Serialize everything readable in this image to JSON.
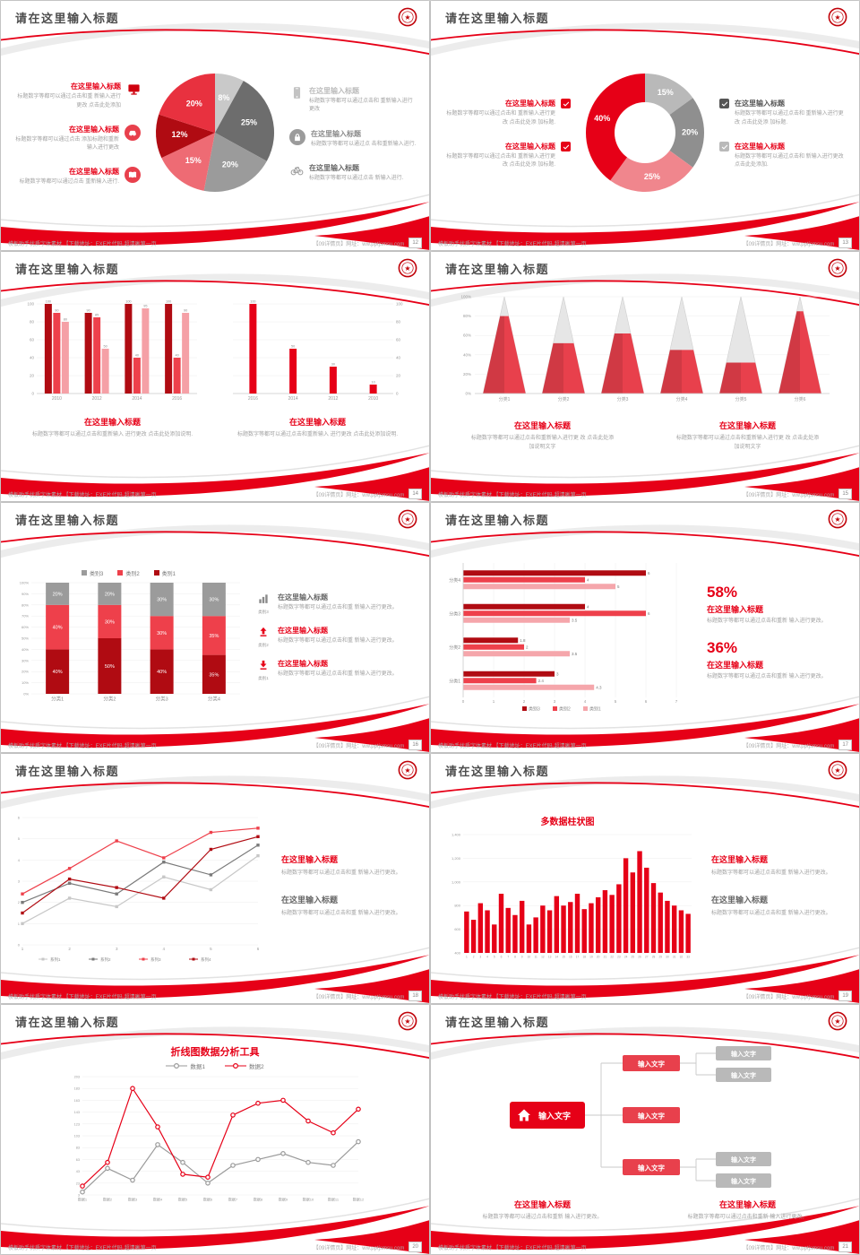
{
  "footer": {
    "left": "模板助手优质字体素材 【下载地址：EXE片代码·超清晰第一页",
    "right": "【09详情页】网址：ww.pptjsmsu.com"
  },
  "logo": {
    "glyph": "★"
  },
  "slides": [
    {
      "type": "pie_features",
      "title": "请在这里输入标题",
      "page_no": "12",
      "left_items": [
        {
          "icon": "monitor",
          "style": "plain",
          "color": "#cf000e",
          "title": "在这里输入标题",
          "title_color": "#e60017",
          "desc": "标题数字等都可以通过点击和重 新输入进行更改 点击此处添加"
        },
        {
          "icon": "car",
          "style": "circle",
          "color": "#e8404c",
          "title": "在这里输入标题",
          "title_color": "#e60017",
          "desc": "标题数字等都可以通过点击 添加标题和重新输入进行更改"
        },
        {
          "icon": "book",
          "style": "circle",
          "color": "#e8404c",
          "title": "在这里输入标题",
          "title_color": "#e60017",
          "desc": "标题数字等都可以通过点击 重新输入进行."
        }
      ],
      "right_items": [
        {
          "icon": "phone",
          "style": "plain",
          "color": "#c3c3c3",
          "title": "在这里输入标题",
          "title_color": "#bcbcbc",
          "desc": "标题数字等都可以通过点击和 重新输入进行更改"
        },
        {
          "icon": "lock",
          "style": "circle",
          "color": "#9b9b9b",
          "title": "在这里输入标题",
          "title_color": "#8a8a8a",
          "desc": "标题数字等都可以通过点 击和重新输入进行."
        },
        {
          "icon": "bike",
          "style": "plain",
          "color": "#9b9b9b",
          "title": "在这里输入标题",
          "title_color": "#666666",
          "desc": "标题数字等都可以通过点击 新输入进行."
        }
      ],
      "chart": {
        "type": "pie",
        "slices": [
          {
            "label": "8%",
            "value": 8,
            "color": "#c9c9c9"
          },
          {
            "label": "25%",
            "value": 25,
            "color": "#6d6d6d"
          },
          {
            "label": "20%",
            "value": 20,
            "color": "#9b9b9b"
          },
          {
            "label": "15%",
            "value": 15,
            "color": "#ee6b74"
          },
          {
            "label": "12%",
            "value": 12,
            "color": "#b00b12"
          },
          {
            "label": "20%",
            "value": 20,
            "color": "#e8313f"
          }
        ]
      }
    },
    {
      "type": "donut_checks",
      "title": "请在这里输入标题",
      "page_no": "13",
      "left_items": [
        {
          "box_color": "#e60017",
          "title": "在这里输入标题",
          "title_color": "#e60017",
          "desc": "标题数字等都可以通过点击和 重新输入进行更改 点击此处添 加标题."
        },
        {
          "box_color": "#e60017",
          "title": "在这里输入标题",
          "title_color": "#e60017",
          "desc": "标题数字等都可以通过点击和 重新输入进行更改 点击此处添 加标题."
        }
      ],
      "right_items": [
        {
          "box_color": "#555555",
          "title": "在这里输入标题",
          "title_color": "#555555",
          "desc": "标题数字等都可以通过点击和 重新输入进行更改 点击此处添 加标题."
        },
        {
          "box_color": "#b9b9b9",
          "title": "在这里输入标题",
          "title_color": "#e60017",
          "desc": "标题数字等都可以通过点击和 新输入进行更改 点击此处添加."
        }
      ],
      "chart": {
        "type": "donut",
        "slices": [
          {
            "label": "15%",
            "value": 15,
            "color": "#b9b9b9"
          },
          {
            "label": "20%",
            "value": 20,
            "color": "#8f8f8f"
          },
          {
            "label": "25%",
            "value": 25,
            "color": "#f0868d"
          },
          {
            "label": "40%",
            "value": 40,
            "color": "#e60017"
          }
        ]
      }
    },
    {
      "type": "dual_bars",
      "title": "请在这里输入标题",
      "page_no": "14",
      "panels": [
        {
          "heading": "在这里输入标题",
          "desc": "标题数字等都可以通过点击和重新输入 进行更改 点击此处添加说明.",
          "chart": {
            "categories": [
              "2010",
              "2012",
              "2014",
              "2016"
            ],
            "series": [
              {
                "color": "#b00b12",
                "values": [
                  100,
                  90,
                  100,
                  100
                ]
              },
              {
                "color": "#ee404b",
                "values": [
                  90,
                  85,
                  40,
                  40
                ]
              },
              {
                "color": "#f5a0a6",
                "values": [
                  80,
                  50,
                  95,
                  90
                ]
              }
            ],
            "yticks": [
              0,
              20,
              40,
              60,
              80,
              100
            ],
            "axis": "left"
          }
        },
        {
          "heading": "在这里输入标题",
          "desc": "标题数字等都可以通过点击和重新输入 进行更改 点击此处添加说明.",
          "chart": {
            "categories": [
              "2016",
              "2014",
              "2012",
              "2010"
            ],
            "series": [
              {
                "color": "#e60017",
                "values": [
                  100,
                  50,
                  30,
                  10
                ]
              }
            ],
            "yticks": [
              0,
              20,
              40,
              60,
              80,
              100
            ],
            "axis": "right"
          }
        }
      ]
    },
    {
      "type": "cones",
      "title": "请在这里输入标题",
      "page_no": "15",
      "chart": {
        "categories": [
          "分类1",
          "分类2",
          "分类3",
          "分类4",
          "分类5",
          "分类6"
        ],
        "values": [
          80,
          52,
          62,
          45,
          32,
          85
        ],
        "yticks": [
          "100%",
          "80%",
          "60%",
          "40%",
          "20%",
          "0%"
        ]
      },
      "texts": [
        {
          "heading": "在这里输入标题",
          "desc": "标题数字等都可以通过点击和重新输入进行更 改 点击此处添加说明文字"
        },
        {
          "heading": "在这里输入标题",
          "desc": "标题数字等都可以通过点击和重新输入进行更 改 点击此处添加说明文字"
        }
      ]
    },
    {
      "type": "stacked_legend",
      "title": "请在这里输入标题",
      "page_no": "16",
      "chart": {
        "categories": [
          "分类1",
          "分类2",
          "分类3",
          "分类4"
        ],
        "ymax": 100,
        "ystep": 10,
        "series": [
          {
            "name": "类别1",
            "color": "#b00b12",
            "values": [
              40,
              50,
              40,
              35
            ]
          },
          {
            "name": "类别2",
            "color": "#ee404b",
            "values": [
              40,
              30,
              30,
              35
            ]
          },
          {
            "name": "类别3",
            "color": "#9b9b9b",
            "values": [
              20,
              20,
              30,
              30
            ]
          }
        ],
        "legend_order": [
          "类别3",
          "类别2",
          "类别1"
        ],
        "legend_colors": [
          "#9b9b9b",
          "#ee404b",
          "#b00b12"
        ]
      },
      "items": [
        {
          "icon": "chart",
          "icon_color": "#8a8a8a",
          "caption": "类别3",
          "title": "在这里输入标题",
          "title_color": "#666666",
          "desc": "标题数字等都可以通过点击和重 新输入进行更改。"
        },
        {
          "icon": "up",
          "icon_color": "#e60017",
          "caption": "类别2",
          "title": "在这里输入标题",
          "title_color": "#e60017",
          "desc": "标题数字等都可以通过点击和重 新输入进行更改。"
        },
        {
          "icon": "down",
          "icon_color": "#e60017",
          "caption": "类别1",
          "title": "在这里输入标题",
          "title_color": "#e60017",
          "desc": "标题数字等都可以通过点击和重 新输入进行更改。"
        }
      ]
    },
    {
      "type": "hbar_stats",
      "title": "请在这里输入标题",
      "page_no": "17",
      "chart": {
        "categories": [
          "分类4",
          "分类3",
          "分类2",
          "分类1"
        ],
        "series": [
          {
            "name": "类别3",
            "color": "#b00b12"
          },
          {
            "name": "类别2",
            "color": "#ee404b"
          },
          {
            "name": "类别1",
            "color": "#f5a6ab"
          }
        ],
        "rows": [
          [
            6,
            4,
            5
          ],
          [
            4,
            6,
            3.5
          ],
          [
            1.8,
            2,
            3.5
          ],
          [
            3,
            2.4,
            4.3
          ]
        ],
        "xticks": [
          0,
          1,
          2,
          3,
          4,
          5,
          6,
          7
        ]
      },
      "stats": [
        {
          "value": "58%",
          "heading": "在这里输入标题",
          "desc": "标题数字等都可以通过点击和重新 输入进行更改。"
        },
        {
          "value": "36%",
          "heading": "在这里输入标题",
          "desc": "标题数字等都可以通过点击和重新 输入进行更改。"
        }
      ]
    },
    {
      "type": "lines_text",
      "title": "请在这里输入标题",
      "page_no": "18",
      "chart": {
        "x": [
          "1",
          "2",
          "3",
          "4",
          "5",
          "6"
        ],
        "ymax": 6,
        "ystep": 1,
        "series": [
          {
            "name": "系列1",
            "color": "#c7c7c7",
            "values": [
              1,
              2.2,
              1.8,
              3.2,
              2.6,
              4.2
            ]
          },
          {
            "name": "系列2",
            "color": "#7a7a7a",
            "values": [
              2,
              2.9,
              2.4,
              3.9,
              3.3,
              4.7
            ]
          },
          {
            "name": "系列3",
            "color": "#ee404b",
            "values": [
              2.4,
              3.6,
              4.9,
              4.1,
              5.3,
              5.5
            ]
          },
          {
            "name": "系列4",
            "color": "#b00b12",
            "values": [
              1.5,
              3.1,
              2.7,
              2.2,
              4.5,
              5.1
            ]
          }
        ]
      },
      "texts": [
        {
          "heading": "在这里输入标题",
          "heading_color": "#e60017",
          "desc": "标题数字等都可以通过点击和重 新输入进行更改。"
        },
        {
          "heading": "在这里输入标题",
          "heading_color": "#666666",
          "desc": "标题数字等都可以通过点击和重 新输入进行更改。"
        }
      ]
    },
    {
      "type": "columns_text",
      "title": "请在这里输入标题",
      "page_no": "19",
      "chart": {
        "heading": "多数据柱状图",
        "values": [
          750,
          680,
          820,
          760,
          640,
          900,
          780,
          720,
          840,
          640,
          700,
          800,
          760,
          880,
          800,
          830,
          900,
          770,
          820,
          870,
          930,
          890,
          980,
          1200,
          1080,
          1260,
          1120,
          990,
          910,
          840,
          800,
          760,
          730
        ],
        "ymin": 400,
        "ymax": 1400,
        "yticks": [
          "1,400",
          "1,200",
          "1,000",
          "800",
          "600",
          "400"
        ]
      },
      "texts": [
        {
          "heading": "在这里输入标题",
          "heading_color": "#e60017",
          "desc": "标题数字等都可以通过点击和重 新输入进行更改。"
        },
        {
          "heading": "在这里输入标题",
          "heading_color": "#666666",
          "desc": "标题数字等都可以通过点击和重 新输入进行更改。"
        }
      ]
    },
    {
      "type": "line_title",
      "title": "请在这里输入标题",
      "page_no": "20",
      "chart": {
        "heading": "折线图数据分析工具",
        "xlabels": [
          "数据1",
          "数据2",
          "数据3",
          "数据4",
          "数据5",
          "数据6",
          "数据7",
          "数据8",
          "数据9",
          "数据10",
          "数据11",
          "数据12"
        ],
        "yticks": [
          203,
          183,
          163,
          143,
          123,
          103,
          83,
          63,
          43,
          23,
          3
        ],
        "ymin": 3,
        "ymax": 203,
        "series": [
          {
            "name": "数据1",
            "color": "#9a9a9a",
            "values": [
              8,
              48,
              28,
              88,
              58,
              23,
              53,
              63,
              73,
              58,
              53,
              93
            ]
          },
          {
            "name": "数据2",
            "color": "#e60017",
            "values": [
              18,
              58,
              183,
              118,
              38,
              33,
              138,
              158,
              163,
              128,
              108,
              148
            ]
          }
        ]
      }
    },
    {
      "type": "diagram",
      "title": "请在这里输入标题",
      "page_no": "21",
      "diagram": {
        "home_label": "输入文字",
        "mid_labels": [
          "输入文字",
          "输入文字",
          "输入文字"
        ],
        "right_labels": [
          "输入文字",
          "输入文字",
          "输入文字",
          "输入文字"
        ]
      },
      "texts": [
        {
          "heading": "在这里输入标题",
          "desc": "标题数字等都可以通过点击和重新 输入进行更改。"
        },
        {
          "heading": "在这里输入标题",
          "desc": "标题数字等都可以通过点击和重新 输入进行更改。"
        }
      ]
    }
  ]
}
